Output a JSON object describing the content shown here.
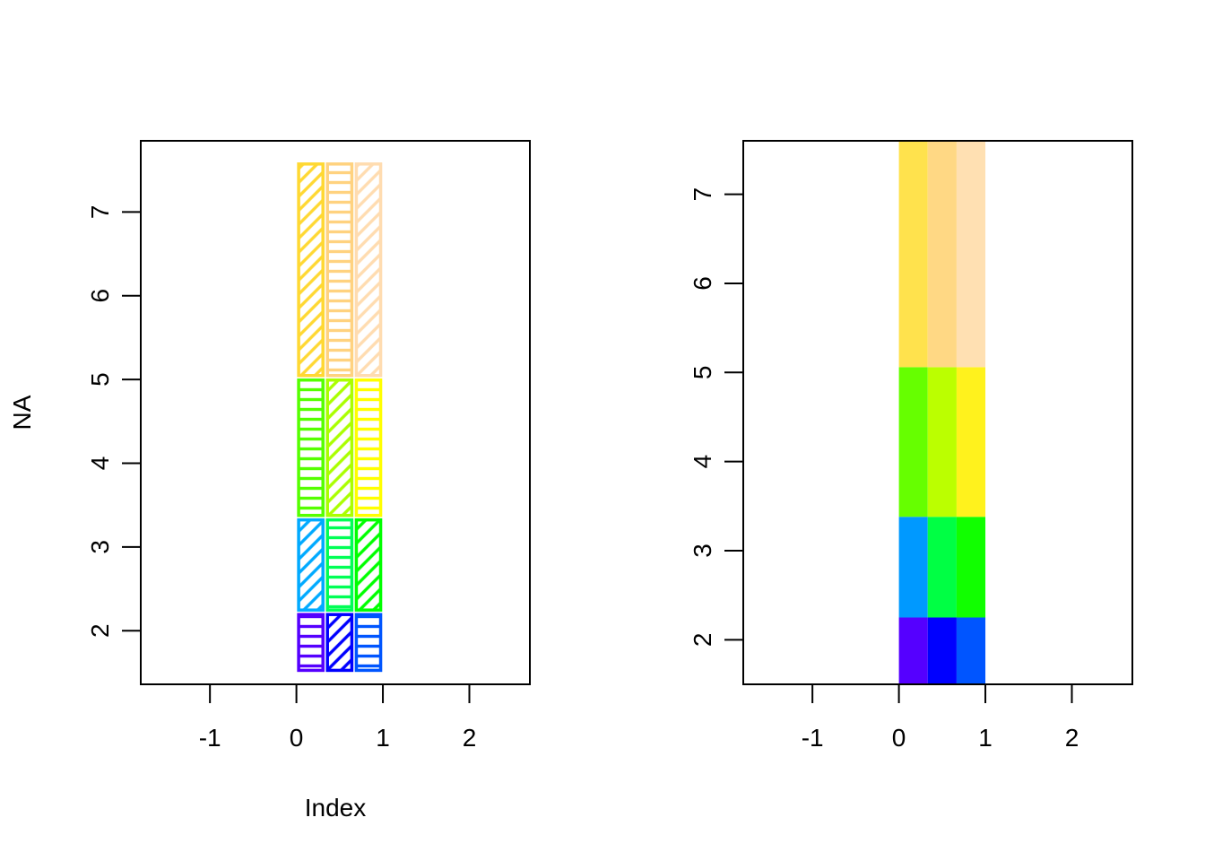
{
  "chart_data": [
    {
      "type": "heatmap",
      "style": "hatched-outline",
      "title": "",
      "xlabel": "Index",
      "ylabel": "NA",
      "xlim": [
        -1.8,
        2.7
      ],
      "ylim": [
        1.36,
        7.85
      ],
      "x_ticks": [
        -1,
        0,
        1,
        2
      ],
      "x_tick_labels": [
        "-1",
        "0",
        "1",
        "2"
      ],
      "y_ticks": [
        2,
        3,
        4,
        5,
        6,
        7
      ],
      "y_tick_labels": [
        "2",
        "3",
        "4",
        "5",
        "6",
        "7"
      ],
      "x_breaks": [
        0,
        0.333,
        0.667,
        1
      ],
      "y_breaks": [
        1.5,
        2.22,
        3.35,
        5.02,
        7.6
      ],
      "cells": [
        {
          "col": 0,
          "row": 0,
          "color": "#5500ff",
          "pattern": "horizontal"
        },
        {
          "col": 1,
          "row": 0,
          "color": "#0000ff",
          "pattern": "diagonal"
        },
        {
          "col": 2,
          "row": 0,
          "color": "#0055ff",
          "pattern": "horizontal"
        },
        {
          "col": 0,
          "row": 1,
          "color": "#00aaff",
          "pattern": "diagonal"
        },
        {
          "col": 1,
          "row": 1,
          "color": "#00ff55",
          "pattern": "horizontal"
        },
        {
          "col": 2,
          "row": 1,
          "color": "#00ff00",
          "pattern": "diagonal"
        },
        {
          "col": 0,
          "row": 2,
          "color": "#55ff00",
          "pattern": "horizontal"
        },
        {
          "col": 1,
          "row": 2,
          "color": "#aaff00",
          "pattern": "diagonal"
        },
        {
          "col": 2,
          "row": 2,
          "color": "#ffff00",
          "pattern": "horizontal"
        },
        {
          "col": 0,
          "row": 3,
          "color": "#ffd833",
          "pattern": "diagonal"
        },
        {
          "col": 1,
          "row": 3,
          "color": "#ffd27f",
          "pattern": "horizontal"
        },
        {
          "col": 2,
          "row": 3,
          "color": "#ffdcb0",
          "pattern": "diagonal"
        }
      ]
    },
    {
      "type": "heatmap",
      "style": "filled",
      "title": "",
      "xlabel": "",
      "ylabel": "",
      "xlim": [
        -1.8,
        2.7
      ],
      "ylim": [
        1.5,
        7.6
      ],
      "x_ticks": [
        -1,
        0,
        1,
        2
      ],
      "x_tick_labels": [
        "-1",
        "0",
        "1",
        "2"
      ],
      "y_ticks": [
        2,
        3,
        4,
        5,
        6,
        7
      ],
      "y_tick_labels": [
        "2",
        "3",
        "4",
        "5",
        "6",
        "7"
      ],
      "x_breaks": [
        0,
        0.333,
        0.667,
        1
      ],
      "y_breaks": [
        1.5,
        2.25,
        3.38,
        5.06,
        7.6
      ],
      "cells": [
        {
          "col": 0,
          "row": 0,
          "color": "#5500ff"
        },
        {
          "col": 1,
          "row": 0,
          "color": "#0000ff"
        },
        {
          "col": 2,
          "row": 0,
          "color": "#0055ff"
        },
        {
          "col": 0,
          "row": 1,
          "color": "#0099ff"
        },
        {
          "col": 1,
          "row": 1,
          "color": "#00ff44"
        },
        {
          "col": 2,
          "row": 1,
          "color": "#11ff00"
        },
        {
          "col": 0,
          "row": 2,
          "color": "#66ff00"
        },
        {
          "col": 1,
          "row": 2,
          "color": "#bbff00"
        },
        {
          "col": 2,
          "row": 2,
          "color": "#fff21d"
        },
        {
          "col": 0,
          "row": 3,
          "color": "#ffe24d"
        },
        {
          "col": 1,
          "row": 3,
          "color": "#ffd884"
        },
        {
          "col": 2,
          "row": 3,
          "color": "#ffe0b2"
        }
      ]
    }
  ]
}
